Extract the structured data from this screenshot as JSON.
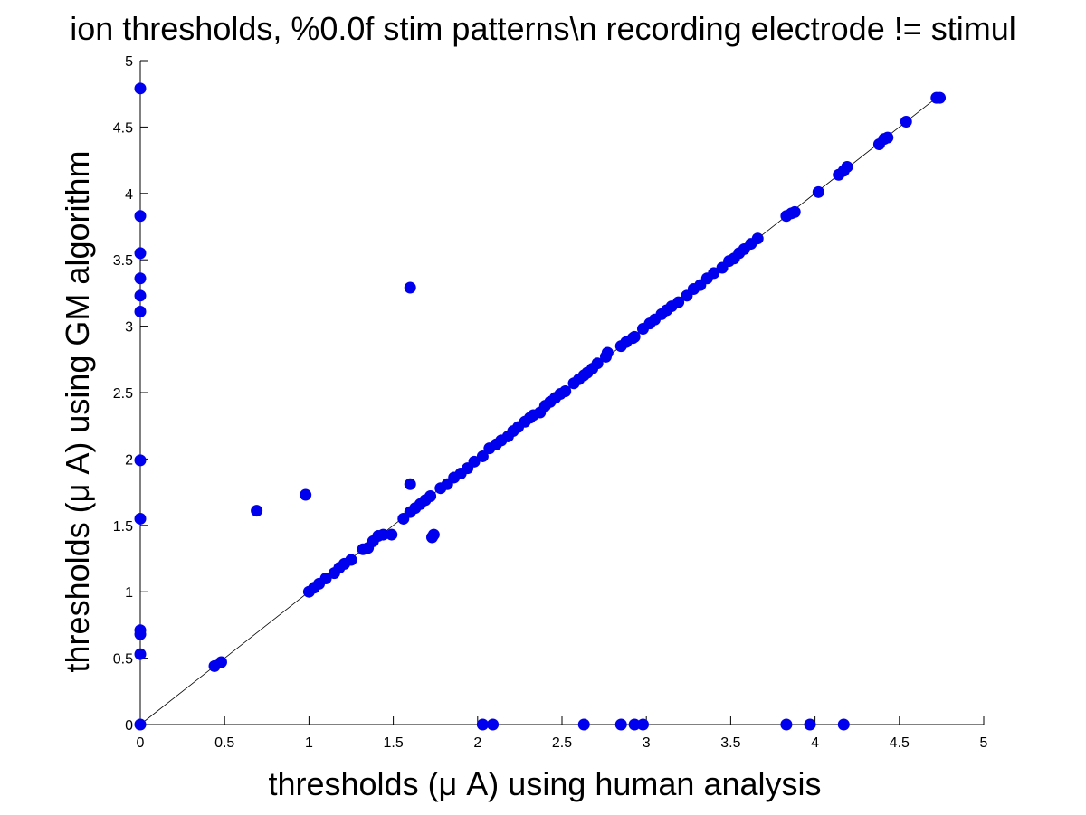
{
  "chart_data": {
    "type": "scatter",
    "title": "ion thresholds, %0.0f stim patterns\\n recording electrode != stimul",
    "xlabel": "thresholds (μ A) using human analysis",
    "ylabel": "thresholds (μ A) using GM algorithm",
    "xlim": [
      0,
      5
    ],
    "ylim": [
      0,
      5
    ],
    "x_ticks": [
      "0",
      "0.5",
      "1",
      "1.5",
      "2",
      "2.5",
      "3",
      "3.5",
      "4",
      "4.5",
      "5"
    ],
    "y_ticks": [
      "0",
      "0.5",
      "1",
      "1.5",
      "2",
      "2.5",
      "3",
      "3.5",
      "4",
      "4.5",
      "5"
    ],
    "grid": false,
    "reference_line": {
      "from": [
        0,
        0
      ],
      "to": [
        4.75,
        4.75
      ],
      "color": "#000000"
    },
    "marker_color": "#0000ee",
    "series": [
      {
        "points": [
          [
            0,
            4.79
          ],
          [
            0,
            3.83
          ],
          [
            0,
            3.55
          ],
          [
            0,
            3.36
          ],
          [
            0,
            3.23
          ],
          [
            0,
            3.11
          ],
          [
            0,
            1.99
          ],
          [
            0,
            1.55
          ],
          [
            0,
            0.71
          ],
          [
            0,
            0.68
          ],
          [
            0,
            0.53
          ],
          [
            0,
            0
          ],
          [
            0.44,
            0.44
          ],
          [
            0.48,
            0.47
          ],
          [
            0.69,
            1.61
          ],
          [
            0.98,
            1.73
          ],
          [
            1.0,
            1.0
          ],
          [
            1.03,
            1.03
          ],
          [
            1.06,
            1.06
          ],
          [
            1.1,
            1.1
          ],
          [
            1.15,
            1.14
          ],
          [
            1.18,
            1.18
          ],
          [
            1.21,
            1.21
          ],
          [
            1.25,
            1.24
          ],
          [
            1.32,
            1.32
          ],
          [
            1.35,
            1.33
          ],
          [
            1.38,
            1.38
          ],
          [
            1.41,
            1.42
          ],
          [
            1.44,
            1.43
          ],
          [
            1.49,
            1.43
          ],
          [
            1.56,
            1.55
          ],
          [
            1.6,
            1.6
          ],
          [
            1.63,
            1.63
          ],
          [
            1.66,
            1.66
          ],
          [
            1.69,
            1.69
          ],
          [
            1.72,
            1.72
          ],
          [
            1.6,
            3.29
          ],
          [
            1.6,
            1.81
          ],
          [
            1.73,
            1.41
          ],
          [
            1.74,
            1.43
          ],
          [
            1.78,
            1.78
          ],
          [
            1.82,
            1.81
          ],
          [
            1.86,
            1.86
          ],
          [
            1.9,
            1.89
          ],
          [
            1.94,
            1.93
          ],
          [
            1.98,
            1.98
          ],
          [
            2.03,
            2.02
          ],
          [
            2.07,
            2.08
          ],
          [
            2.11,
            2.11
          ],
          [
            2.14,
            2.14
          ],
          [
            2.18,
            2.17
          ],
          [
            2.21,
            2.21
          ],
          [
            2.24,
            2.24
          ],
          [
            2.28,
            2.28
          ],
          [
            2.31,
            2.31
          ],
          [
            2.33,
            2.33
          ],
          [
            2.37,
            2.35
          ],
          [
            2.4,
            2.4
          ],
          [
            2.43,
            2.43
          ],
          [
            2.46,
            2.46
          ],
          [
            2.49,
            2.49
          ],
          [
            2.52,
            2.51
          ],
          [
            2.57,
            2.57
          ],
          [
            2.6,
            2.6
          ],
          [
            2.63,
            2.63
          ],
          [
            2.65,
            2.65
          ],
          [
            2.68,
            2.68
          ],
          [
            2.71,
            2.72
          ],
          [
            2.76,
            2.77
          ],
          [
            2.77,
            2.8
          ],
          [
            2.85,
            2.85
          ],
          [
            2.88,
            2.88
          ],
          [
            2.92,
            2.91
          ],
          [
            2.93,
            2.92
          ],
          [
            2.98,
            2.98
          ],
          [
            3.02,
            3.02
          ],
          [
            3.05,
            3.05
          ],
          [
            3.09,
            3.09
          ],
          [
            3.12,
            3.12
          ],
          [
            3.15,
            3.15
          ],
          [
            3.19,
            3.18
          ],
          [
            3.24,
            3.23
          ],
          [
            3.28,
            3.28
          ],
          [
            3.32,
            3.31
          ],
          [
            3.36,
            3.36
          ],
          [
            3.4,
            3.4
          ],
          [
            3.45,
            3.44
          ],
          [
            3.49,
            3.49
          ],
          [
            3.52,
            3.51
          ],
          [
            3.55,
            3.55
          ],
          [
            3.58,
            3.58
          ],
          [
            3.62,
            3.62
          ],
          [
            3.66,
            3.66
          ],
          [
            3.83,
            3.83
          ],
          [
            3.86,
            3.85
          ],
          [
            3.88,
            3.86
          ],
          [
            4.02,
            4.01
          ],
          [
            4.14,
            4.14
          ],
          [
            4.17,
            4.17
          ],
          [
            4.19,
            4.2
          ],
          [
            4.38,
            4.37
          ],
          [
            4.41,
            4.41
          ],
          [
            4.43,
            4.42
          ],
          [
            4.54,
            4.54
          ],
          [
            4.72,
            4.72
          ],
          [
            4.74,
            4.72
          ],
          [
            2.03,
            0
          ],
          [
            2.09,
            0
          ],
          [
            2.63,
            0
          ],
          [
            2.85,
            0
          ],
          [
            2.93,
            0
          ],
          [
            2.98,
            0
          ],
          [
            3.83,
            0
          ],
          [
            3.97,
            0
          ],
          [
            4.17,
            0
          ]
        ]
      }
    ]
  }
}
